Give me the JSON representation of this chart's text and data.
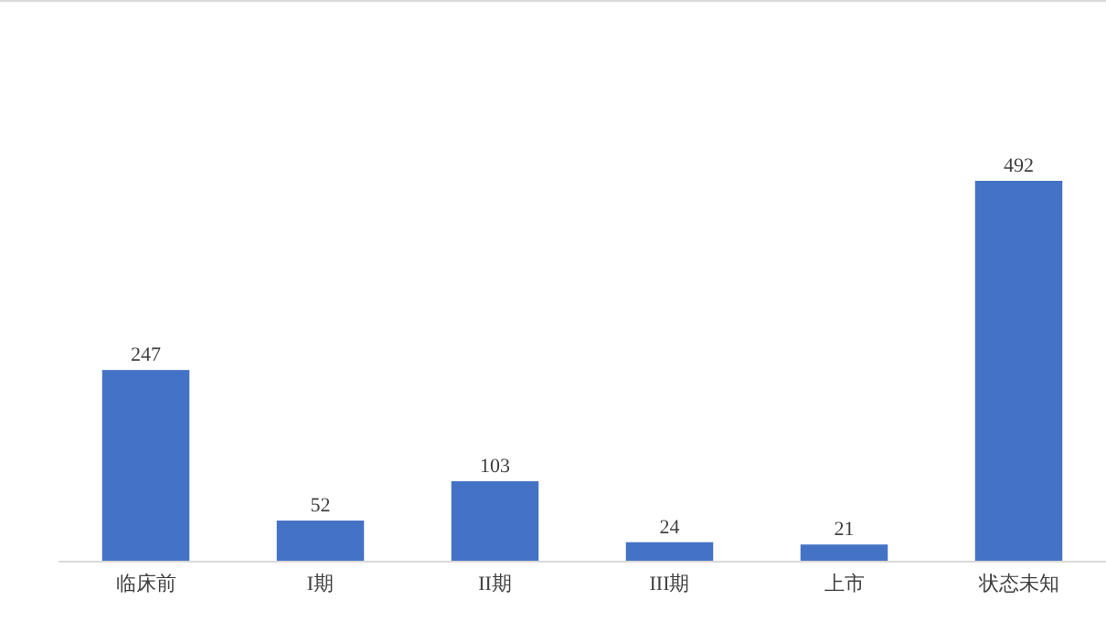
{
  "chart_data": {
    "type": "bar",
    "categories": [
      "临床前",
      "I期",
      "II期",
      "III期",
      "上市",
      "状态未知"
    ],
    "values": [
      247,
      52,
      103,
      24,
      21,
      492
    ],
    "color": "#4472c4",
    "data_labels": true
  }
}
